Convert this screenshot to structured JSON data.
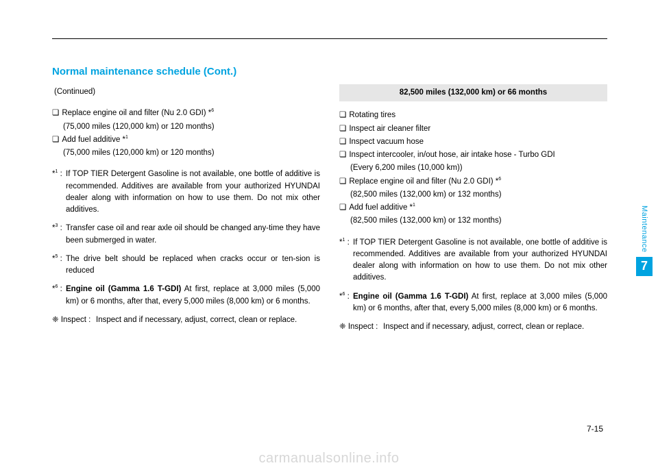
{
  "heading": "Normal maintenance schedule (Cont.)",
  "left": {
    "continued": "(Continued)",
    "items": [
      {
        "main": "Replace engine oil and filter (Nu 2.0 GDI) *",
        "sup": "6",
        "sub": "(75,000 miles (120,000 km) or 120 months)"
      },
      {
        "main": "Add fuel additive *",
        "sup": "1",
        "sub": "(75,000 miles (120,000 km) or 120 months)"
      }
    ],
    "notes": [
      {
        "marker": "*",
        "sup": "1",
        "text": "If TOP TIER Detergent Gasoline is not available, one bottle of additive is recommended. Additives are available from your authorized HYUNDAI dealer along with information on how to use them. Do not mix other additives."
      },
      {
        "marker": "*",
        "sup": "3",
        "text": "Transfer case oil and rear axle oil should be changed any-time they have been submerged in water."
      },
      {
        "marker": "*",
        "sup": "5",
        "text": "The drive belt should be replaced when cracks occur or ten-sion is reduced"
      },
      {
        "marker": "*",
        "sup": "6",
        "bold": "Engine oil (Gamma 1.6 T-GDI)",
        "text": " At first, replace at 3,000 miles (5,000 km) or 6 months, after that, every 5,000 miles (8,000 km) or 6 months."
      }
    ],
    "inspect_marker": "❈ Inspect :",
    "inspect_text": "Inspect and if necessary, adjust, correct, clean or replace."
  },
  "right": {
    "milestone": "82,500 miles (132,000 km) or 66 months",
    "items": [
      {
        "main": "Rotating tires"
      },
      {
        "main": "Inspect air cleaner filter"
      },
      {
        "main": "Inspect vacuum hose"
      },
      {
        "main": "Inspect intercooler, in/out hose, air intake hose - Turbo GDI",
        "sub": "(Every 6,200 miles (10,000 km))"
      },
      {
        "main": "Replace engine oil and filter (Nu 2.0 GDI) *",
        "sup": "6",
        "sub": "(82,500 miles (132,000 km) or 132 months)"
      },
      {
        "main": "Add fuel additive *",
        "sup": "1",
        "sub": "(82,500 miles (132,000 km) or 132 months)"
      }
    ],
    "notes": [
      {
        "marker": "*",
        "sup": "1",
        "text": "If TOP TIER Detergent Gasoline is not available, one bottle of additive is recommended. Additives are available from your authorized HYUNDAI dealer along with information on how to use them. Do not mix other additives."
      },
      {
        "marker": "*",
        "sup": "6",
        "bold": "Engine oil (Gamma 1.6 T-GDI)",
        "text": " At first, replace at 3,000 miles (5,000 km) or 6 months, after that, every 5,000 miles (8,000 km) or 6 months."
      }
    ],
    "inspect_marker": "❈ Inspect :",
    "inspect_text": "Inspect and if necessary, adjust, correct, clean or replace."
  },
  "side": {
    "label": "Maintenance",
    "num": "7"
  },
  "page_num": "7-15",
  "watermark": "carmanualsonline.info"
}
